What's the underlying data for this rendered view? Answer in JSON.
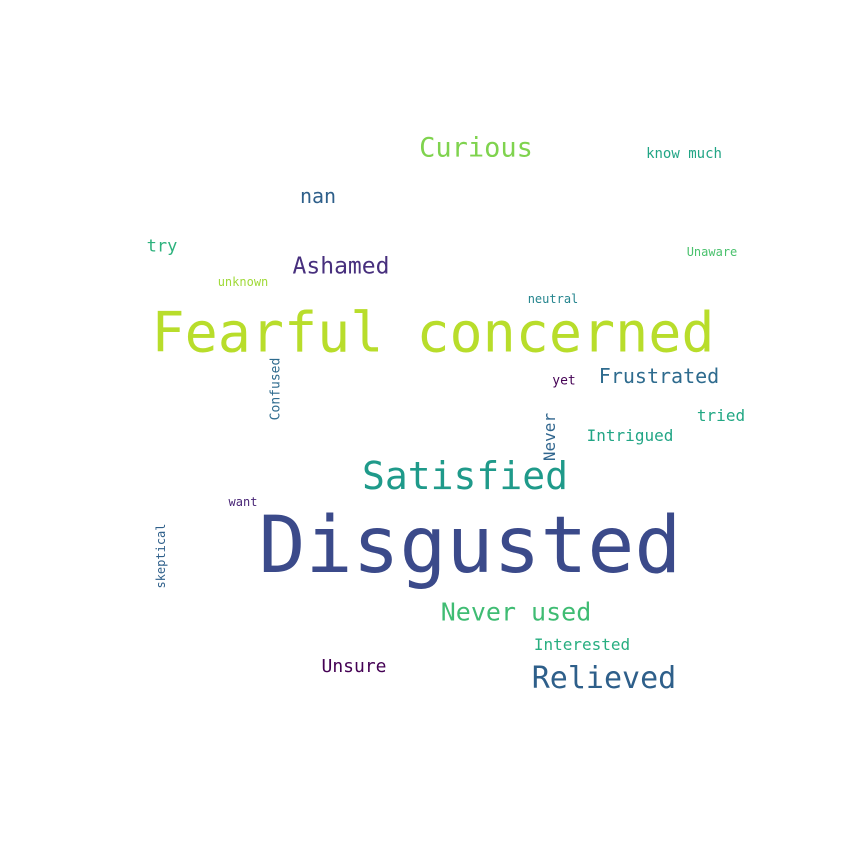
{
  "words": {
    "disgusted": {
      "text": "Disgusted",
      "color": "#3b4a8a"
    },
    "fearful_concerned": {
      "text": "Fearful concerned",
      "color": "#b8dd2b"
    },
    "satisfied": {
      "text": "Satisfied",
      "color": "#1f9a8a"
    },
    "relieved": {
      "text": "Relieved",
      "color": "#2e5f8a"
    },
    "never_used": {
      "text": "Never used",
      "color": "#3fbc73"
    },
    "curious": {
      "text": "Curious",
      "color": "#7fd34e"
    },
    "ashamed": {
      "text": "Ashamed",
      "color": "#472f7d"
    },
    "frustrated": {
      "text": "Frustrated",
      "color": "#2e6b8e"
    },
    "nan": {
      "text": "nan",
      "color": "#2e5f8a"
    },
    "unsure": {
      "text": "Unsure",
      "color": "#440154"
    },
    "intrigued": {
      "text": "Intrigued",
      "color": "#21a585"
    },
    "interested": {
      "text": "Interested",
      "color": "#28ae80"
    },
    "try": {
      "text": "try",
      "color": "#2db27d"
    },
    "tried": {
      "text": "tried",
      "color": "#22a884"
    },
    "know_much": {
      "text": "know much",
      "color": "#21a585"
    },
    "unaware": {
      "text": "Unaware",
      "color": "#4ac16d"
    },
    "unknown": {
      "text": "unknown",
      "color": "#a0da39"
    },
    "neutral": {
      "text": "neutral",
      "color": "#25858e"
    },
    "yet": {
      "text": "yet",
      "color": "#440154"
    },
    "want": {
      "text": "want",
      "color": "#482576"
    },
    "never": {
      "text": "Never",
      "color": "#31668e"
    },
    "confused": {
      "text": "Confused",
      "color": "#2e6b8e"
    },
    "skeptical": {
      "text": "skeptical",
      "color": "#2e5f8a"
    }
  }
}
